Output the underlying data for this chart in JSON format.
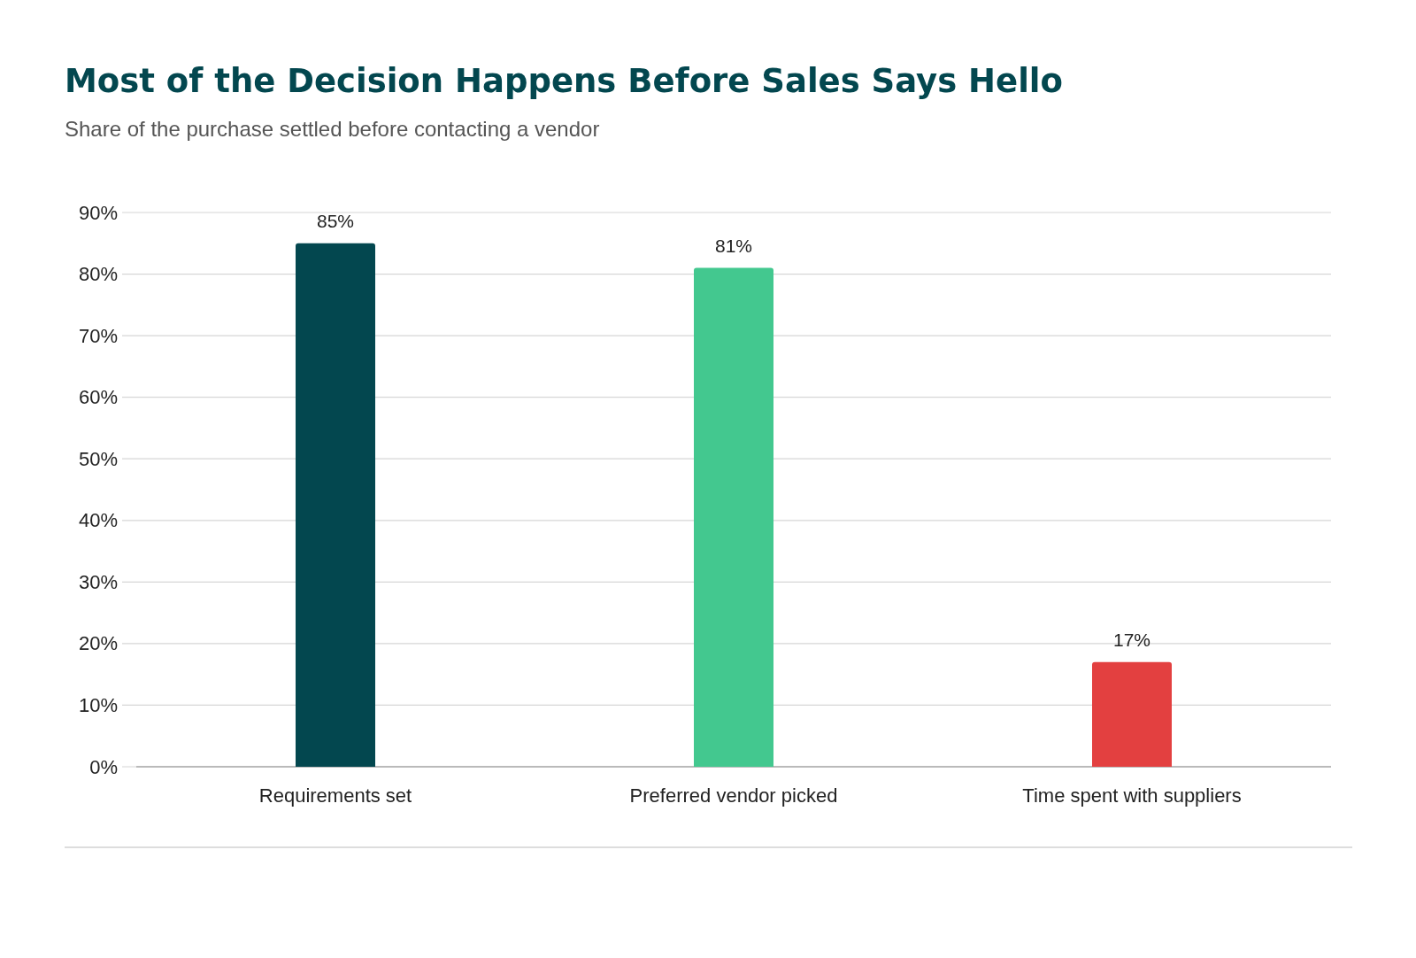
{
  "chart_data": {
    "type": "bar",
    "title": "Most of the Decision Happens Before Sales Says Hello",
    "subtitle": "Share of the purchase settled before contacting a vendor",
    "categories": [
      "Requirements set",
      "Preferred vendor picked",
      "Time spent with suppliers"
    ],
    "values": [
      85,
      81,
      17
    ],
    "colors": [
      "#03474f",
      "#43c88f",
      "#e34040"
    ],
    "value_labels": [
      "85%",
      "81%",
      "17%"
    ],
    "ylim": [
      0,
      90
    ],
    "yticks": [
      {
        "value": 0,
        "label": "0%"
      },
      {
        "value": 10,
        "label": "10%"
      },
      {
        "value": 20,
        "label": "20%"
      },
      {
        "value": 30,
        "label": "30%"
      },
      {
        "value": 40,
        "label": "40%"
      },
      {
        "value": 50,
        "label": "50%"
      },
      {
        "value": 60,
        "label": "60%"
      },
      {
        "value": 70,
        "label": "70%"
      },
      {
        "value": 80,
        "label": "80%"
      },
      {
        "value": 90,
        "label": "90%"
      }
    ],
    "grid": "y"
  }
}
